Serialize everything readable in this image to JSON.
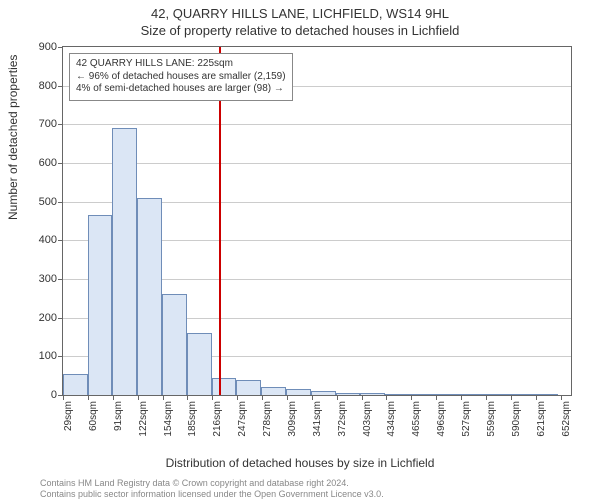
{
  "title": "42, QUARRY HILLS LANE, LICHFIELD, WS14 9HL",
  "subtitle": "Size of property relative to detached houses in Lichfield",
  "ylabel": "Number of detached properties",
  "xlabel": "Distribution of detached houses by size in Lichfield",
  "footer_line1": "Contains HM Land Registry data © Crown copyright and database right 2024.",
  "footer_line2": "Contains public sector information licensed under the Open Government Licence v3.0.",
  "chart": {
    "type": "histogram",
    "background_color": "#ffffff",
    "border_color": "#666666",
    "grid_color": "#cccccc",
    "bar_fill": "#dbe6f5",
    "bar_stroke": "#6f8db8",
    "refline_color": "#cc0000",
    "refline_x": 225,
    "ylim": [
      0,
      900
    ],
    "ytick_step": 100,
    "xlim": [
      29,
      668
    ],
    "xtick_step": 31.3,
    "xtick_labels": [
      "29sqm",
      "60sqm",
      "91sqm",
      "122sqm",
      "154sqm",
      "185sqm",
      "216sqm",
      "247sqm",
      "278sqm",
      "309sqm",
      "341sqm",
      "372sqm",
      "403sqm",
      "434sqm",
      "465sqm",
      "496sqm",
      "527sqm",
      "559sqm",
      "590sqm",
      "621sqm",
      "652sqm"
    ],
    "bars": [
      {
        "x": 29,
        "w": 31,
        "v": 55
      },
      {
        "x": 60,
        "w": 31,
        "v": 465
      },
      {
        "x": 91,
        "w": 31,
        "v": 690
      },
      {
        "x": 122,
        "w": 32,
        "v": 510
      },
      {
        "x": 154,
        "w": 31,
        "v": 260
      },
      {
        "x": 185,
        "w": 31,
        "v": 160
      },
      {
        "x": 216,
        "w": 31,
        "v": 45
      },
      {
        "x": 247,
        "w": 31,
        "v": 40
      },
      {
        "x": 278,
        "w": 31,
        "v": 20
      },
      {
        "x": 309,
        "w": 32,
        "v": 15
      },
      {
        "x": 341,
        "w": 31,
        "v": 10
      },
      {
        "x": 372,
        "w": 31,
        "v": 5
      },
      {
        "x": 403,
        "w": 31,
        "v": 5
      },
      {
        "x": 434,
        "w": 31,
        "v": 0
      },
      {
        "x": 465,
        "w": 31,
        "v": 0
      },
      {
        "x": 496,
        "w": 31,
        "v": 0
      },
      {
        "x": 527,
        "w": 32,
        "v": 0
      },
      {
        "x": 559,
        "w": 31,
        "v": 0
      },
      {
        "x": 590,
        "w": 31,
        "v": 0
      },
      {
        "x": 621,
        "w": 31,
        "v": 0
      }
    ],
    "annotation": {
      "line1": "42 QUARRY HILLS LANE: 225sqm",
      "line2": "← 96% of detached houses are smaller (2,159)",
      "line3": "4% of semi-detached houses are larger (98) →"
    },
    "label_fontsize": 12,
    "tick_fontsize": 11,
    "xtick_fontsize": 10
  }
}
